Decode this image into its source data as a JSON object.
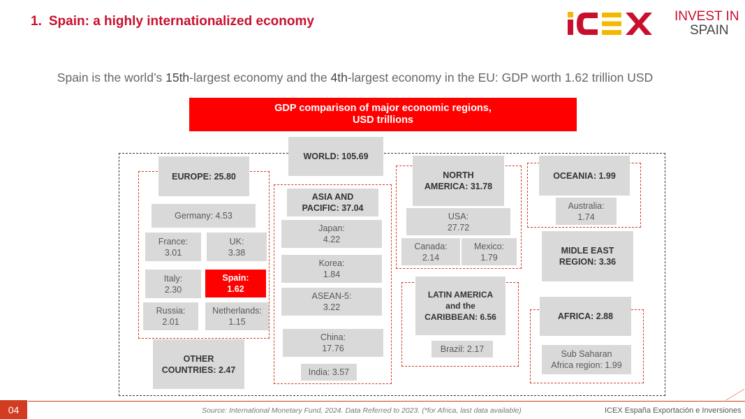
{
  "header": {
    "number": "1.",
    "title": "Spain: a highly internationalized economy",
    "logo_icex": "ICEX",
    "logo_invest_line1": "INVEST IN",
    "logo_invest_line2": "SPAIN"
  },
  "subtitle": {
    "p1": "Spain is the world’s ",
    "rank_world": "15th",
    "p2": "-largest economy and the ",
    "rank_eu": "4th",
    "p3": "-largest economy in the EU: GDP worth  1.62 trillion USD"
  },
  "banner": {
    "line1": "GDP comparison of major economic regions,",
    "line2": "USD trillions"
  },
  "regions": {
    "world": "WORLD: 105.69",
    "europe": {
      "header": "EUROPE: 25.80",
      "germany": "Germany: 4.53",
      "france_name": "France:",
      "france_value": "3.01",
      "uk_name": "UK:",
      "uk_value": "3.38",
      "italy_name": "Italy:",
      "italy_value": "2.30",
      "spain_name": "Spain:",
      "spain_value": "1.62",
      "russia_name": "Russia:",
      "russia_value": "2.01",
      "netherlands_name": "Netherlands:",
      "netherlands_value": "1.15"
    },
    "other_countries_line1": "OTHER",
    "other_countries_line2": "COUNTRIES: 2.47",
    "asia": {
      "header_line1": "ASIA AND",
      "header_line2": "PACIFIC: 37.04",
      "japan_name": "Japan:",
      "japan_value": "4.22",
      "korea_name": "Korea:",
      "korea_value": "1.84",
      "asean_name": "ASEAN-5:",
      "asean_value": "3.22",
      "china_name": "China:",
      "china_value": "17.76",
      "india": "India: 3.57"
    },
    "north_america": {
      "header_line1": "NORTH",
      "header_line2": "AMERICA: 31.78",
      "usa_name": "USA:",
      "usa_value": "27.72",
      "canada_name": "Canada:",
      "canada_value": "2.14",
      "mexico_name": "Mexico:",
      "mexico_value": "1.79"
    },
    "latam": {
      "header_line1": "LATIN AMERICA",
      "header_line2": "and the",
      "header_line3": "CARIBBEAN: 6.56",
      "brazil": "Brazil: 2.17"
    },
    "oceania": {
      "header": "OCEANIA: 1.99",
      "australia_name": "Australia:",
      "australia_value": "1.74"
    },
    "middle_east_line1": "MIDLE EAST",
    "middle_east_line2": "REGION: 3.36",
    "africa": {
      "header": "AFRICA: 2.88",
      "subsaharan_line1": "Sub Saharan",
      "subsaharan_line2": "Africa region: 1.99"
    }
  },
  "footer": {
    "page": "04",
    "source": "Source: International Monetary Fund, 2024. Data Referred to 2023. (*for Africa, last data available)",
    "org": "ICEX España Exportación e Inversiones"
  },
  "colors": {
    "brand_red": "#c8102e",
    "banner_red": "#ff0000",
    "box_grey": "#d9d9d9"
  }
}
